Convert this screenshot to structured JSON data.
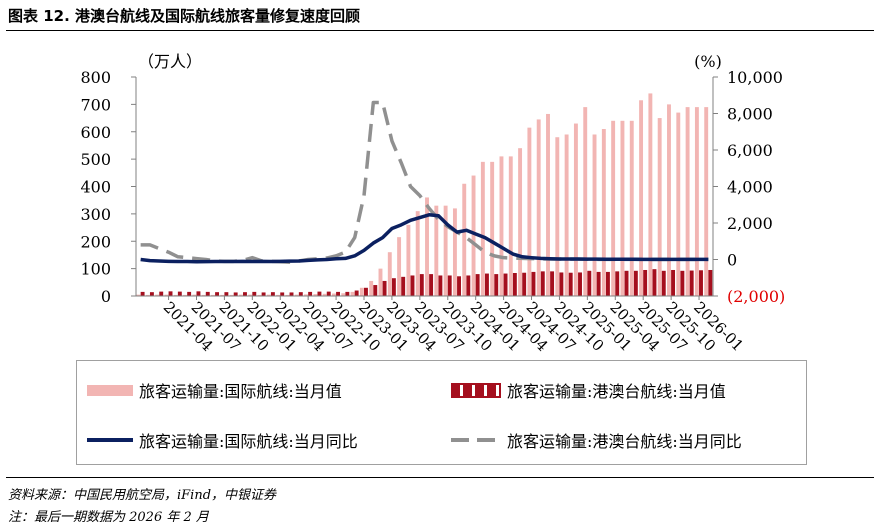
{
  "figure_title": "图表 12. 港澳台航线及国际航线旅客量修复速度回顾",
  "source_note": "资料来源：中国民用航空局，iFind，中银证券",
  "date_note": "注：最后一期数据为 2026 年 2 月",
  "colors": {
    "intl_bar": "#f2b5b3",
    "hkmt_bar": "#a50f1e",
    "intl_line": "#0b2060",
    "hkmt_line": "#909090",
    "negative_tick": "#e00000"
  },
  "chart_data": {
    "type": "bar",
    "left_axis": {
      "unit_label": "（万人）",
      "range": [
        0,
        800
      ],
      "ticks": [
        "800",
        "700",
        "600",
        "500",
        "400",
        "300",
        "200",
        "100",
        "0"
      ]
    },
    "right_axis": {
      "unit_label": "(%)",
      "range": [
        -2000,
        10000
      ],
      "ticks": [
        "10,000",
        "8,000",
        "6,000",
        "4,000",
        "2,000",
        "0",
        "(2,000)"
      ]
    },
    "x_tick_labels": [
      "2021-04",
      "2021-07",
      "2021-10",
      "2022-01",
      "2022-04",
      "2022-07",
      "2022-10",
      "2023-01",
      "2023-04",
      "2023-07",
      "2023-10",
      "2024-01",
      "2024-04",
      "2024-07",
      "2024-10",
      "2025-01",
      "2025-04",
      "2025-07",
      "2025-10",
      "2026-01"
    ],
    "categories": [
      "2021-01",
      "2021-02",
      "2021-03",
      "2021-04",
      "2021-05",
      "2021-06",
      "2021-07",
      "2021-08",
      "2021-09",
      "2021-10",
      "2021-11",
      "2021-12",
      "2022-01",
      "2022-02",
      "2022-03",
      "2022-04",
      "2022-05",
      "2022-06",
      "2022-07",
      "2022-08",
      "2022-09",
      "2022-10",
      "2022-11",
      "2022-12",
      "2023-01",
      "2023-02",
      "2023-03",
      "2023-04",
      "2023-05",
      "2023-06",
      "2023-07",
      "2023-08",
      "2023-09",
      "2023-10",
      "2023-11",
      "2023-12",
      "2024-01",
      "2024-02",
      "2024-03",
      "2024-04",
      "2024-05",
      "2024-06",
      "2024-07",
      "2024-08",
      "2024-09",
      "2024-10",
      "2024-11",
      "2024-12",
      "2025-01",
      "2025-02",
      "2025-03",
      "2025-04",
      "2025-05",
      "2025-06",
      "2025-07",
      "2025-08",
      "2025-09",
      "2025-10",
      "2025-11",
      "2025-12",
      "2026-01",
      "2026-02"
    ],
    "series": [
      {
        "name": "旅客运输量:国际航线:当月值",
        "kind": "bar",
        "axis": "left",
        "legend_order": 1,
        "values": [
          5,
          4,
          5,
          5,
          4,
          4,
          5,
          4,
          4,
          4,
          4,
          5,
          5,
          4,
          5,
          4,
          4,
          5,
          6,
          7,
          8,
          9,
          10,
          15,
          30,
          55,
          100,
          160,
          215,
          260,
          310,
          360,
          330,
          330,
          320,
          410,
          440,
          490,
          490,
          510,
          510,
          540,
          615,
          645,
          665,
          580,
          590,
          630,
          690,
          590,
          610,
          640,
          640,
          640,
          715,
          740,
          650,
          700,
          670,
          690,
          690,
          690
        ]
      },
      {
        "name": "旅客运输量:港澳台航线:当月值",
        "kind": "bar",
        "axis": "left",
        "legend_order": 2,
        "values": [
          15,
          14,
          16,
          17,
          16,
          15,
          17,
          15,
          14,
          14,
          13,
          14,
          15,
          13,
          14,
          13,
          13,
          14,
          15,
          16,
          16,
          15,
          15,
          20,
          30,
          40,
          55,
          65,
          70,
          75,
          80,
          80,
          75,
          75,
          72,
          75,
          80,
          82,
          80,
          82,
          84,
          85,
          88,
          90,
          90,
          86,
          85,
          86,
          92,
          88,
          88,
          90,
          92,
          92,
          95,
          98,
          92,
          95,
          92,
          93,
          94,
          95
        ]
      },
      {
        "name": "旅客运输量:国际航线:当月同比",
        "kind": "line",
        "axis": "right",
        "legend_order": 3,
        "values": [
          0,
          -60,
          -80,
          -100,
          -110,
          -110,
          -120,
          -115,
          -110,
          -110,
          -110,
          -100,
          -110,
          -100,
          -110,
          -105,
          -90,
          -80,
          -50,
          -20,
          0,
          40,
          60,
          200,
          500,
          900,
          1200,
          1700,
          1900,
          2150,
          2300,
          2450,
          2400,
          1900,
          1500,
          1600,
          1400,
          1200,
          900,
          600,
          300,
          150,
          100,
          60,
          40,
          30,
          30,
          30,
          20,
          20,
          15,
          15,
          15,
          15,
          10,
          10,
          8,
          6,
          5,
          5,
          5,
          5
        ]
      },
      {
        "name": "旅客运输量:港澳台航线:当月同比",
        "kind": "line",
        "axis": "right",
        "legend_order": 4,
        "values": [
          800,
          800,
          600,
          400,
          150,
          100,
          50,
          0,
          -80,
          -100,
          -100,
          -50,
          100,
          -80,
          -100,
          -120,
          -150,
          -80,
          0,
          40,
          80,
          200,
          400,
          1200,
          3500,
          8600,
          8600,
          6500,
          5300,
          4000,
          3500,
          2800,
          2200,
          1800,
          1500,
          1200,
          800,
          400,
          200,
          100,
          80,
          60,
          50,
          40,
          30,
          30,
          20,
          20,
          15,
          10,
          10,
          10,
          5,
          5,
          5,
          5,
          5,
          5,
          5,
          5,
          5,
          5
        ]
      }
    ]
  }
}
